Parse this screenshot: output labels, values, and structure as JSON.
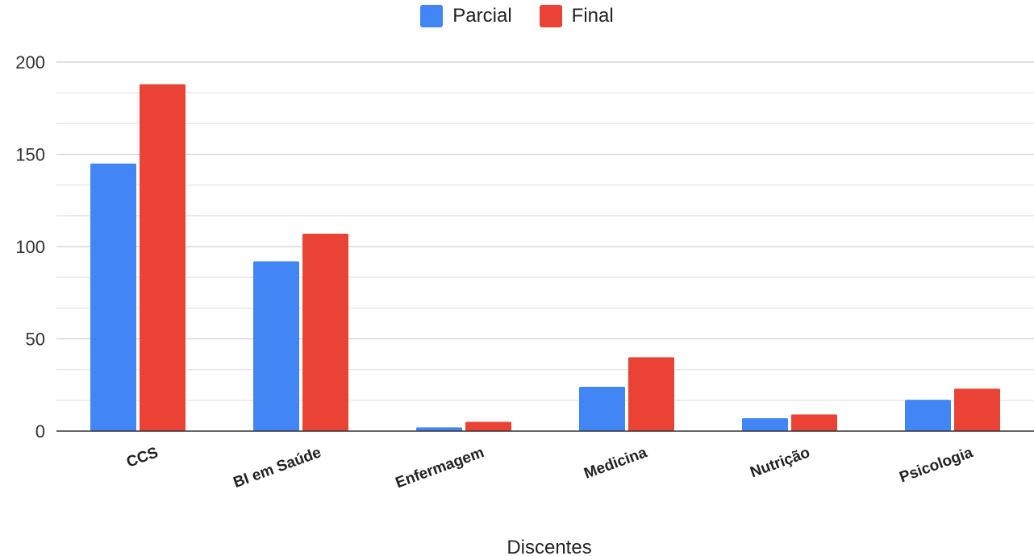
{
  "chart_data": {
    "type": "bar",
    "xlabel": "Discentes",
    "ylabel": "",
    "ylim": [
      0,
      200
    ],
    "yticks": [
      0,
      50,
      100,
      150,
      200
    ],
    "minor_gridlines": true,
    "legend_position": "top-center",
    "categories": [
      "CCS",
      "BI em Saúde",
      "Enfermagem",
      "Medicina",
      "Nutrição",
      "Psicologia"
    ],
    "series": [
      {
        "name": "Parcial",
        "color": "#4285f4",
        "values": [
          145,
          92,
          2,
          24,
          7,
          17
        ]
      },
      {
        "name": "Final",
        "color": "#ea4335",
        "values": [
          188,
          107,
          5,
          40,
          9,
          23
        ]
      }
    ]
  }
}
